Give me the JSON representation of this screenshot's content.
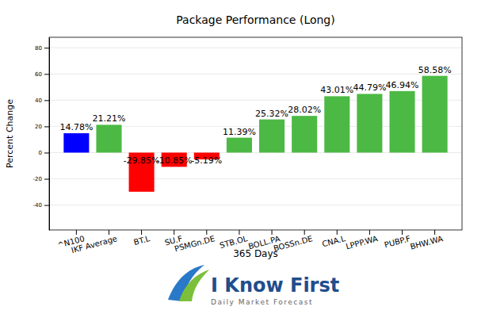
{
  "chart_data": {
    "type": "bar",
    "title": "Package Performance (Long)",
    "x_label": "365 Days",
    "y_label": "Percent Change",
    "categories": [
      "^N100",
      "IKF Average",
      "BT.L",
      "SU.F",
      "PSMGn.DE",
      "STB.OL",
      "BOLL.PA",
      "BOSSn.DE",
      "CNA.L",
      "LPPP.WA",
      "PUBP.F",
      "BHW.WA"
    ],
    "values": [
      14.78,
      21.21,
      -29.85,
      -10.85,
      -5.19,
      11.39,
      25.32,
      28.02,
      43.01,
      44.79,
      46.94,
      58.58
    ],
    "value_labels": [
      "14.78%",
      "21.21%",
      "-29.85%",
      "-10.85%",
      "-5.19%",
      "11.39%",
      "25.32%",
      "28.02%",
      "43.01%",
      "44.79%",
      "46.94%",
      "58.58%"
    ],
    "colors": [
      "#0000ff",
      "#4cb944",
      "#ff0000",
      "#ff0000",
      "#ff0000",
      "#4cb944",
      "#4cb944",
      "#4cb944",
      "#4cb944",
      "#4cb944",
      "#4cb944",
      "#4cb944"
    ],
    "ylim": [
      -59,
      88
    ],
    "yticks": [
      -40,
      -20,
      0,
      20,
      40,
      60,
      80
    ],
    "grid": true,
    "data_labels": true,
    "annotations": [
      "I Know First",
      "Daily Market Forecast"
    ]
  }
}
